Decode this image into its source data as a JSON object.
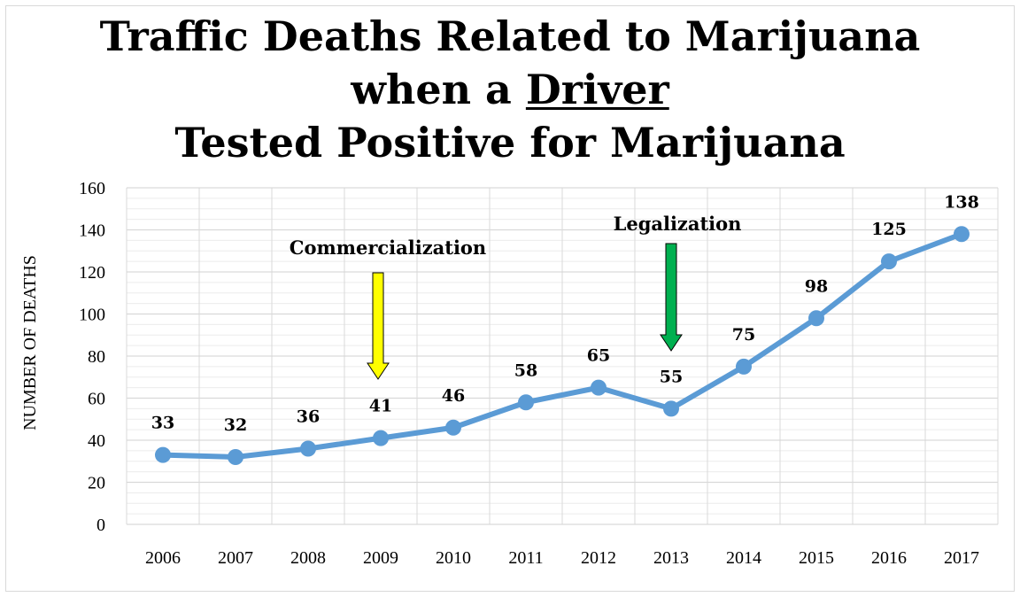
{
  "chart_data": {
    "type": "line",
    "title": {
      "line1": "Traffic Deaths Related to Marijuana",
      "line2_prefix": "when a ",
      "line2_underlined": "Driver",
      "line3": "Tested Positive for Marijuana"
    },
    "ylabel": "NUMBER OF DEATHS",
    "xlabel": "",
    "categories": [
      "2006",
      "2007",
      "2008",
      "2009",
      "2010",
      "2011",
      "2012",
      "2013",
      "2014",
      "2015",
      "2016",
      "2017"
    ],
    "values": [
      33,
      32,
      36,
      41,
      46,
      58,
      65,
      55,
      75,
      98,
      125,
      138
    ],
    "ylim": [
      0,
      160
    ],
    "yticks": [
      0,
      20,
      40,
      60,
      80,
      100,
      120,
      140,
      160
    ],
    "grid": true,
    "line_color": "#5b9bd5",
    "annotations": [
      {
        "label": "Commercialization",
        "at": "2009",
        "arrow_color": "#ffff00"
      },
      {
        "label": "Legalization",
        "at": "2013",
        "arrow_color": "#00b050"
      }
    ]
  }
}
